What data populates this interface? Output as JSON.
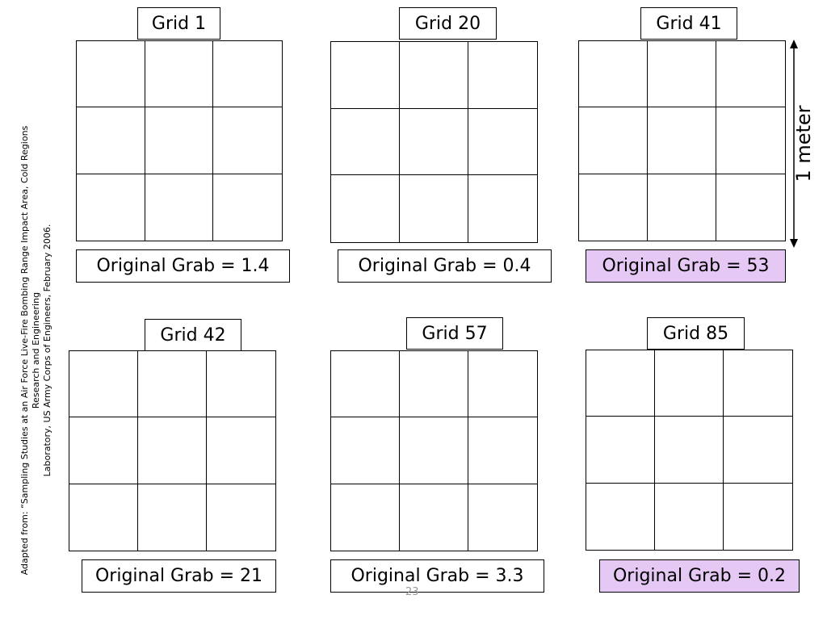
{
  "panels": [
    {
      "title": "Grid 1",
      "grab": "Original Grab = 1.4",
      "highlight": false
    },
    {
      "title": "Grid 20",
      "grab": "Original Grab = 0.4",
      "highlight": false
    },
    {
      "title": "Grid 41",
      "grab": "Original Grab = 53",
      "highlight": true
    },
    {
      "title": "Grid 42",
      "grab": "Original Grab = 21",
      "highlight": false
    },
    {
      "title": "Grid 57",
      "grab": "Original Grab = 3.3",
      "highlight": false
    },
    {
      "title": "Grid 85",
      "grab": "Original Grab = 0.2",
      "highlight": true
    }
  ],
  "scale_label": "1 meter",
  "credit": {
    "line1": "Adapted from: “Sampling Studies at an Air Force Live-Fire Bombing Range Impact Area, Cold Regions",
    "line2": "Research and Engineering",
    "line3": "Laboratory, US Army Corps of Engineers, February 2006."
  },
  "page_number": "23",
  "colors": {
    "highlight": "#e6c8f5",
    "line": "#000000"
  }
}
